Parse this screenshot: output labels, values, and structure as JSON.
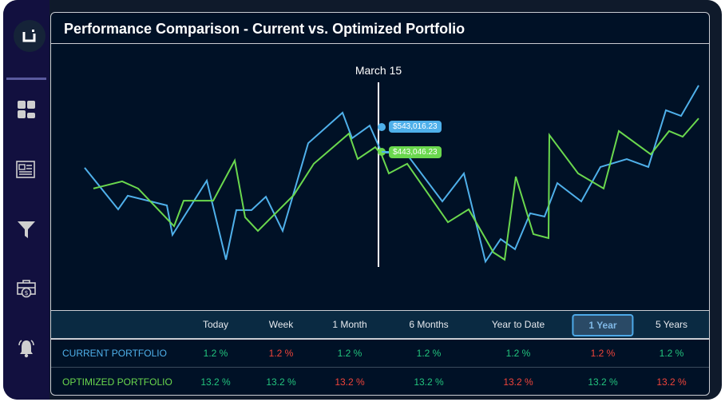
{
  "sidebar": {
    "logo_text": "ui",
    "items": [
      {
        "name": "dashboard",
        "icon": "dashboard-icon"
      },
      {
        "name": "news",
        "icon": "newspaper-icon"
      },
      {
        "name": "filter",
        "icon": "filter-icon"
      },
      {
        "name": "portfolio",
        "icon": "briefcase-dollar-icon"
      },
      {
        "name": "alerts",
        "icon": "bell-icon"
      }
    ]
  },
  "panel": {
    "title": "Performance Comparison - Current vs. Optimized Portfolio"
  },
  "chart_data": {
    "type": "line",
    "cursor_label": "March 15",
    "series": [
      {
        "key": "current",
        "color": "#4fb0ea",
        "tooltip": "$543,016.23",
        "values": [
          379,
          211,
          266,
          227,
          108,
          327,
          8,
          208,
          208,
          262,
          124,
          478,
          601,
          498,
          549,
          440,
          440,
          243,
          356,
          0,
          91,
          50,
          195,
          182,
          317,
          243,
          382,
          414,
          382,
          611,
          588,
          711
        ]
      },
      {
        "key": "optimized",
        "color": "#6ad84e",
        "tooltip": "$443,046.23",
        "values": [
          295,
          324,
          295,
          143,
          246,
          246,
          408,
          179,
          124,
          269,
          395,
          517,
          414,
          462,
          430,
          356,
          395,
          159,
          211,
          37,
          8,
          343,
          111,
          95,
          511,
          356,
          295,
          527,
          433,
          527,
          504,
          578
        ]
      }
    ],
    "unit": "$K (estimated, no axis printed)"
  },
  "table": {
    "columns": [
      "Today",
      "Week",
      "1 Month",
      "6 Months",
      "Year to Date",
      "1 Year",
      "5 Years"
    ],
    "active_column": "1 Year",
    "rows": [
      {
        "label": "CURRENT PORTFOLIO",
        "label_color": "#4fb0ea",
        "cells": [
          {
            "text": "1.2 %",
            "trend": "up"
          },
          {
            "text": "1.2 %",
            "trend": "down"
          },
          {
            "text": "1.2 %",
            "trend": "up"
          },
          {
            "text": "1.2 %",
            "trend": "up"
          },
          {
            "text": "1.2 %",
            "trend": "up"
          },
          {
            "text": "1.2 %",
            "trend": "down"
          },
          {
            "text": "1.2 %",
            "trend": "up"
          }
        ]
      },
      {
        "label": "OPTIMIZED PORTFOLIO",
        "label_color": "#6ad84e",
        "cells": [
          {
            "text": "13.2 %",
            "trend": "up"
          },
          {
            "text": "13.2 %",
            "trend": "up"
          },
          {
            "text": "13.2 %",
            "trend": "down"
          },
          {
            "text": "13.2 %",
            "trend": "up"
          },
          {
            "text": "13.2 %",
            "trend": "down"
          },
          {
            "text": "13.2 %",
            "trend": "up"
          },
          {
            "text": "13.2 %",
            "trend": "down"
          }
        ]
      }
    ],
    "colors": {
      "up": "#22c47e",
      "down": "#f0443a"
    }
  }
}
